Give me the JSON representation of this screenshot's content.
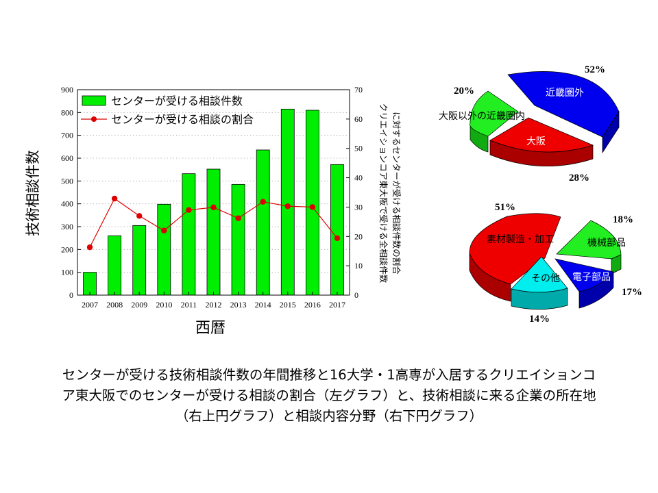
{
  "chart_data": [
    {
      "type": "bar+line",
      "xlabel": "西暦",
      "ylabel_left": "技術相談件数",
      "ylabel_right_lines": [
        "クリエイションコア東大阪で受ける全相談件数",
        "に対するセンターが受ける相談件数の割合"
      ],
      "categories": [
        "2007",
        "2008",
        "2009",
        "2010",
        "2011",
        "2012",
        "2013",
        "2014",
        "2015",
        "2016",
        "2017"
      ],
      "ylim_left": [
        0,
        900
      ],
      "ylim_right": [
        0,
        70
      ],
      "yticks_left": [
        "0",
        "100",
        "200",
        "300",
        "400",
        "500",
        "600",
        "700",
        "800",
        "900"
      ],
      "yticks_right": [
        "0",
        "10",
        "20",
        "30",
        "40",
        "50",
        "60",
        "70"
      ],
      "grid": "horizontal dotted",
      "legend_position": "top-left",
      "series": [
        {
          "name": "センターが受ける相談件数",
          "kind": "bar",
          "axis": "left",
          "color": "#00ee00",
          "values": [
            100,
            260,
            305,
            398,
            532,
            552,
            485,
            636,
            815,
            810,
            572
          ]
        },
        {
          "name": "センターが受ける相談の割合",
          "kind": "line",
          "axis": "right",
          "color": "#dd0000",
          "values": [
            16.3,
            32.9,
            27.0,
            22.0,
            29.0,
            29.9,
            26.2,
            31.8,
            30.3,
            30.0,
            19.4
          ]
        }
      ]
    },
    {
      "type": "pie",
      "slices": [
        {
          "label": "近畿圏外",
          "value": 52,
          "pct": "52%",
          "color": "#0000ee"
        },
        {
          "label": "大阪",
          "value": 28,
          "pct": "28%",
          "color": "#ee0000"
        },
        {
          "label": "大阪以外の近畿圏内",
          "value": 20,
          "pct": "20%",
          "color": "#22ee22"
        }
      ]
    },
    {
      "type": "pie",
      "slices": [
        {
          "label": "素材製造・加工",
          "value": 51,
          "pct": "51%",
          "color": "#ee0000"
        },
        {
          "label": "機械部品",
          "value": 18,
          "pct": "18%",
          "color": "#22ee22"
        },
        {
          "label": "電子部品",
          "value": 17,
          "pct": "17%",
          "color": "#0000ee"
        },
        {
          "label": "その他",
          "value": 14,
          "pct": "14%",
          "color": "#00eeee"
        }
      ]
    }
  ],
  "caption": {
    "line1": "センターが受ける技術相談件数の年間推移と16大学・1高専が入居するクリエイションコ",
    "line2": "ア東大阪でのセンターが受ける相談の割合（左グラフ）と、技術相談に来る企業の所在地",
    "line3": "（右上円グラフ）と相談内容分野（右下円グラフ）"
  }
}
